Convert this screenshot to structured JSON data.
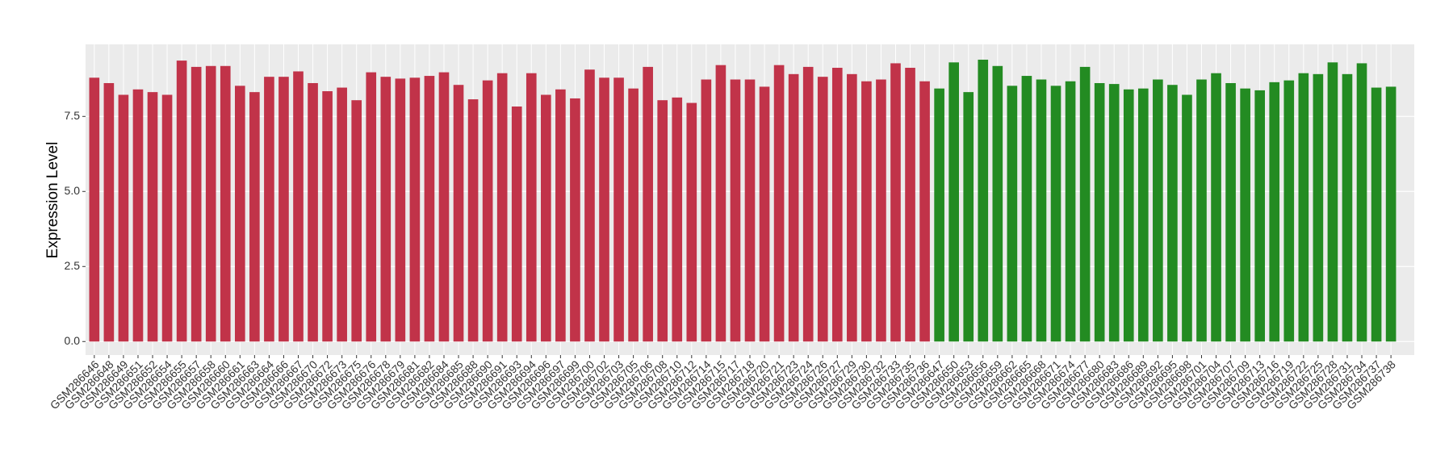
{
  "chart_data": {
    "type": "bar",
    "y_label": "Expression Level",
    "categories": [
      "GSM286646",
      "GSM286648",
      "GSM286649",
      "GSM286651",
      "GSM286652",
      "GSM286654",
      "GSM286655",
      "GSM286657",
      "GSM286658",
      "GSM286660",
      "GSM286661",
      "GSM286663",
      "GSM286664",
      "GSM286666",
      "GSM286667",
      "GSM286670",
      "GSM286672",
      "GSM286673",
      "GSM286675",
      "GSM286676",
      "GSM286678",
      "GSM286679",
      "GSM286681",
      "GSM286682",
      "GSM286684",
      "GSM286685",
      "GSM286688",
      "GSM286690",
      "GSM286691",
      "GSM286693",
      "GSM286694",
      "GSM286696",
      "GSM286697",
      "GSM286699",
      "GSM286700",
      "GSM286702",
      "GSM286703",
      "GSM286705",
      "GSM286706",
      "GSM286708",
      "GSM286710",
      "GSM286712",
      "GSM286714",
      "GSM286715",
      "GSM286717",
      "GSM286718",
      "GSM286720",
      "GSM286721",
      "GSM286723",
      "GSM286724",
      "GSM286726",
      "GSM286727",
      "GSM286729",
      "GSM286730",
      "GSM286732",
      "GSM286733",
      "GSM286735",
      "GSM286736",
      "GSM286647",
      "GSM286650",
      "GSM286653",
      "GSM286656",
      "GSM286659",
      "GSM286662",
      "GSM286665",
      "GSM286668",
      "GSM286671",
      "GSM286674",
      "GSM286677",
      "GSM286680",
      "GSM286683",
      "GSM286686",
      "GSM286689",
      "GSM286692",
      "GSM286695",
      "GSM286698",
      "GSM286701",
      "GSM286704",
      "GSM286707",
      "GSM286709",
      "GSM286713",
      "GSM286716",
      "GSM286719",
      "GSM286722",
      "GSM286725",
      "GSM286728",
      "GSM286731",
      "GSM286734",
      "GSM286737",
      "GSM286738"
    ],
    "values": [
      8.79,
      8.61,
      8.22,
      8.4,
      8.31,
      8.22,
      9.36,
      9.15,
      9.18,
      9.18,
      8.52,
      8.31,
      8.82,
      8.82,
      9.0,
      8.61,
      8.34,
      8.46,
      8.04,
      8.97,
      8.82,
      8.76,
      8.79,
      8.85,
      8.97,
      8.55,
      8.07,
      8.7,
      8.94,
      7.83,
      8.94,
      8.22,
      8.4,
      8.1,
      9.06,
      8.79,
      8.79,
      8.43,
      9.15,
      8.04,
      8.13,
      7.95,
      8.73,
      9.21,
      8.73,
      8.73,
      8.49,
      9.21,
      8.91,
      9.15,
      8.82,
      9.12,
      8.91,
      8.67,
      8.73,
      9.27,
      9.12,
      8.67,
      8.43,
      9.3,
      8.31,
      9.39,
      9.18,
      8.52,
      8.85,
      8.73,
      8.52,
      8.67,
      9.15,
      8.61,
      8.58,
      8.4,
      8.43,
      8.73,
      8.55,
      8.22,
      8.73,
      8.94,
      8.61,
      8.43,
      8.37,
      8.64,
      8.7,
      8.94,
      8.91,
      9.3,
      8.91,
      9.27,
      8.46,
      8.49
    ],
    "bar_colors": [
      "#c13349",
      "#c13349",
      "#c13349",
      "#c13349",
      "#c13349",
      "#c13349",
      "#c13349",
      "#c13349",
      "#c13349",
      "#c13349",
      "#c13349",
      "#c13349",
      "#c13349",
      "#c13349",
      "#c13349",
      "#c13349",
      "#c13349",
      "#c13349",
      "#c13349",
      "#c13349",
      "#c13349",
      "#c13349",
      "#c13349",
      "#c13349",
      "#c13349",
      "#c13349",
      "#c13349",
      "#c13349",
      "#c13349",
      "#c13349",
      "#c13349",
      "#c13349",
      "#c13349",
      "#c13349",
      "#c13349",
      "#c13349",
      "#c13349",
      "#c13349",
      "#c13349",
      "#c13349",
      "#c13349",
      "#c13349",
      "#c13349",
      "#c13349",
      "#c13349",
      "#c13349",
      "#c13349",
      "#c13349",
      "#c13349",
      "#c13349",
      "#c13349",
      "#c13349",
      "#c13349",
      "#c13349",
      "#c13349",
      "#c13349",
      "#c13349",
      "#c13349",
      "#238b22",
      "#238b22",
      "#238b22",
      "#238b22",
      "#238b22",
      "#238b22",
      "#238b22",
      "#238b22",
      "#238b22",
      "#238b22",
      "#238b22",
      "#238b22",
      "#238b22",
      "#238b22",
      "#238b22",
      "#238b22",
      "#238b22",
      "#238b22",
      "#238b22",
      "#238b22",
      "#238b22",
      "#238b22",
      "#238b22",
      "#238b22",
      "#238b22",
      "#238b22",
      "#238b22",
      "#238b22",
      "#238b22",
      "#238b22",
      "#238b22",
      "#238b22"
    ],
    "ylim": [
      -0.45,
      9.9
    ],
    "yticks": [
      {
        "value": 0,
        "label": "0.0"
      },
      2.5,
      {
        "value": 5,
        "label": "5.0"
      },
      7.5
    ],
    "grid": true
  }
}
